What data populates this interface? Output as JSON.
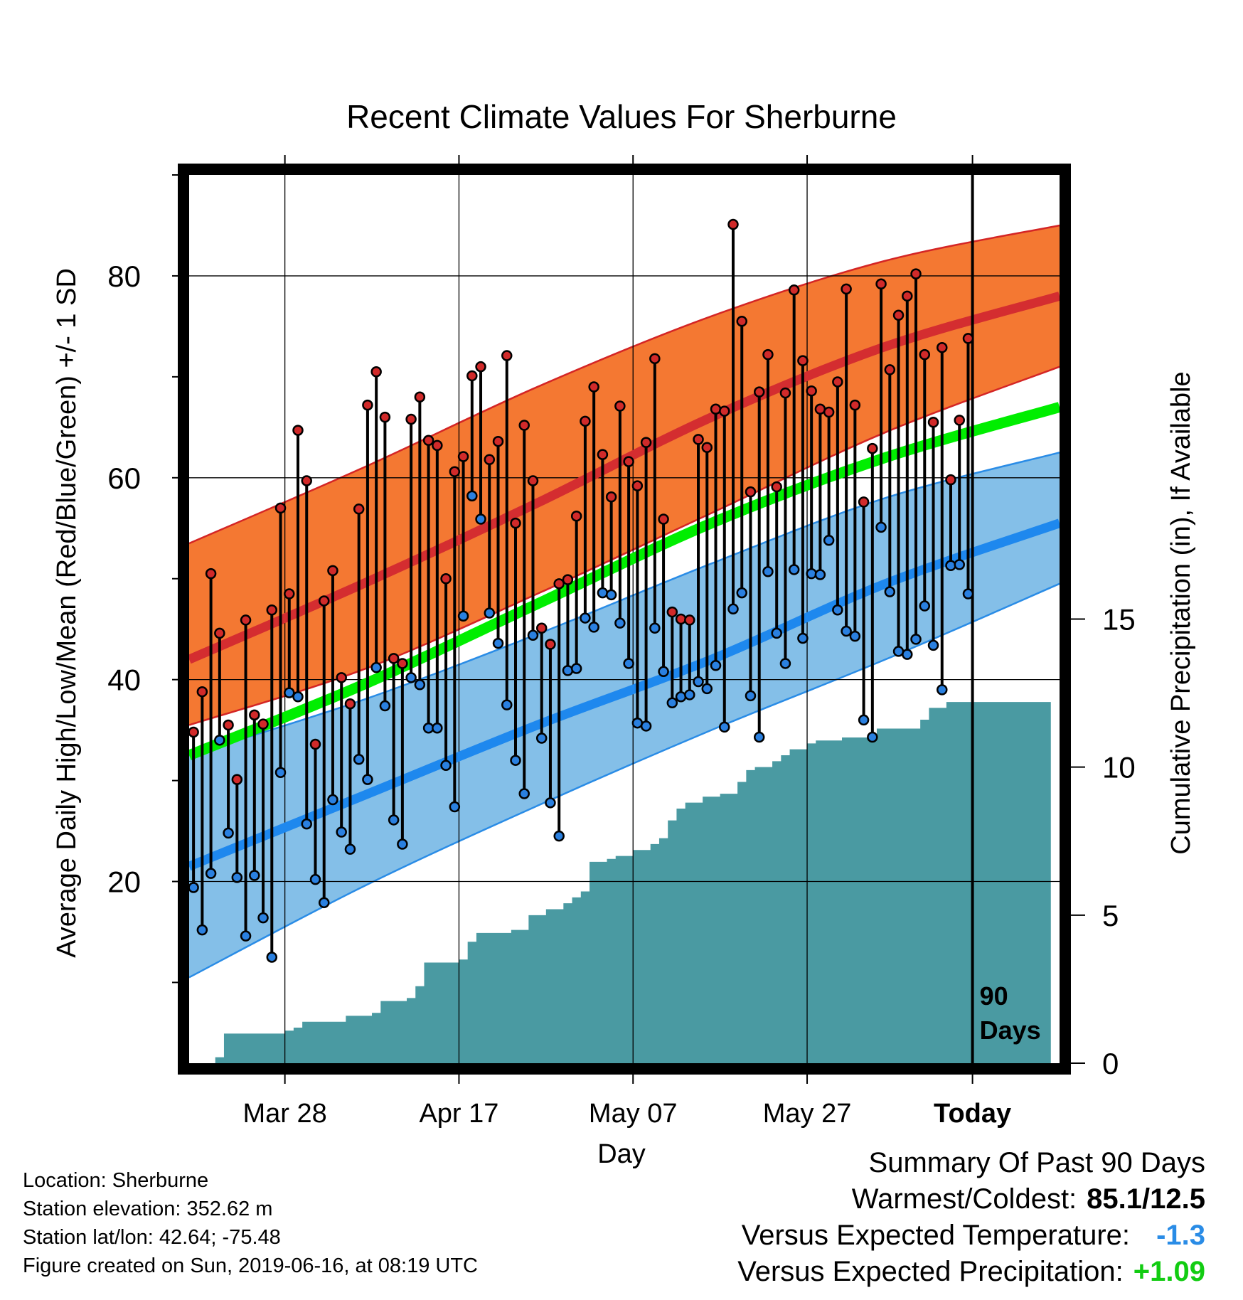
{
  "chart_data": {
    "type": "line",
    "title": "Recent Climate Values For Sherburne",
    "xlabel": "Day",
    "ylabel": "Average Daily High/Low/Mean (Red/Blue/Green) +/- 1 SD",
    "y2label": "Cumulative Precipitation (in), If Available",
    "ylim": [
      2,
      90
    ],
    "yticks": [
      20,
      40,
      60,
      80
    ],
    "y2lim": [
      0,
      30
    ],
    "y2ticks": [
      0,
      5,
      10,
      15
    ],
    "x_ticks": [
      "Mar 28",
      "Apr 17",
      "May 07",
      "May 27",
      "Today"
    ],
    "x_range": [
      "Mar 17",
      "Jun 25"
    ],
    "grid": true,
    "marker_text": "90 Days",
    "colors": {
      "high_band": "#f47832",
      "high_edge": "#d42525",
      "high_mean": "#d42d30",
      "low_band": "#84bfe8",
      "low_edge": "#2a8ce6",
      "low_mean": "#1e88ee",
      "mean": "#00ee00",
      "precip": "#4a9aa2",
      "high_marker": "#d12a2a",
      "low_marker": "#2a80e0"
    },
    "expected_high": [
      {
        "date": "Mar 17",
        "mean": 42,
        "minus_sd": 35.5,
        "plus_sd": 53.5
      },
      {
        "date": "Apr 06",
        "mean": 49.5,
        "minus_sd": 41,
        "plus_sd": 61
      },
      {
        "date": "Apr 26",
        "mean": 57.5,
        "minus_sd": 48.5,
        "plus_sd": 69
      },
      {
        "date": "May 16",
        "mean": 66,
        "minus_sd": 56.5,
        "plus_sd": 76
      },
      {
        "date": "Jun 05",
        "mean": 73,
        "minus_sd": 64.5,
        "plus_sd": 81.5
      },
      {
        "date": "Jun 25",
        "mean": 78,
        "minus_sd": 71,
        "plus_sd": 85
      }
    ],
    "expected_low": [
      {
        "date": "Mar 17",
        "mean": 21.5,
        "minus_sd": 10.5,
        "plus_sd": 32.5
      },
      {
        "date": "Apr 06",
        "mean": 28.5,
        "minus_sd": 19.5,
        "plus_sd": 38
      },
      {
        "date": "Apr 26",
        "mean": 35.5,
        "minus_sd": 27.5,
        "plus_sd": 44.5
      },
      {
        "date": "May 16",
        "mean": 42,
        "minus_sd": 35,
        "plus_sd": 51.5
      },
      {
        "date": "Jun 05",
        "mean": 49.5,
        "minus_sd": 42,
        "plus_sd": 58
      },
      {
        "date": "Jun 25",
        "mean": 55.5,
        "minus_sd": 49.5,
        "plus_sd": 62.5
      }
    ],
    "expected_mean": [
      {
        "date": "Mar 17",
        "value": 32.5
      },
      {
        "date": "Apr 06",
        "value": 39.5
      },
      {
        "date": "Apr 26",
        "value": 47.5
      },
      {
        "date": "May 16",
        "value": 55.5
      },
      {
        "date": "Jun 05",
        "value": 62
      },
      {
        "date": "Jun 25",
        "value": 67
      }
    ],
    "series": [
      {
        "name": "High",
        "values": [
          34.8,
          38.8,
          50.5,
          44.6,
          35.5,
          30.1,
          45.9,
          36.5,
          35.6,
          46.9,
          57.0,
          48.5,
          64.7,
          59.7,
          33.6,
          47.8,
          50.8,
          40.2,
          37.6,
          56.9,
          67.2,
          70.5,
          66.0,
          42.1,
          41.6,
          65.8,
          68.0,
          63.7,
          63.2,
          50.0,
          60.6,
          62.1,
          70.1,
          71.0,
          61.8,
          63.6,
          72.1,
          55.5,
          65.2,
          59.7,
          45.1,
          43.5,
          49.5,
          49.9,
          56.2,
          65.6,
          69.0,
          62.3,
          58.1,
          67.1,
          61.6,
          59.2,
          63.5,
          71.8,
          55.9,
          46.7,
          46.0,
          45.9,
          63.8,
          63.0,
          66.8,
          66.6,
          85.1,
          75.5,
          58.6,
          68.5,
          72.2,
          59.1,
          68.4,
          78.6,
          71.6,
          68.6,
          66.8,
          66.5,
          69.5,
          78.7,
          67.2,
          57.6,
          62.9,
          79.2,
          70.7,
          76.1,
          78.0,
          80.2,
          72.2,
          65.5,
          72.9,
          59.8,
          65.7,
          73.8
        ]
      },
      {
        "name": "Low",
        "values": [
          19.4,
          15.2,
          20.8,
          34.0,
          24.8,
          20.4,
          14.6,
          20.6,
          16.4,
          12.5,
          30.8,
          38.7,
          38.3,
          25.7,
          20.2,
          17.9,
          28.1,
          24.9,
          23.2,
          32.1,
          30.1,
          41.2,
          37.4,
          26.1,
          23.7,
          40.2,
          39.5,
          35.2,
          35.2,
          31.5,
          27.4,
          46.3,
          58.2,
          55.9,
          46.6,
          43.6,
          37.5,
          32.0,
          28.7,
          44.4,
          34.2,
          27.8,
          24.5,
          40.9,
          41.1,
          46.1,
          45.2,
          48.6,
          48.4,
          45.6,
          41.6,
          35.7,
          35.4,
          45.1,
          40.8,
          37.7,
          38.3,
          38.5,
          39.8,
          39.1,
          41.4,
          35.3,
          47.0,
          48.6,
          38.4,
          34.3,
          50.7,
          44.6,
          41.6,
          50.9,
          44.1,
          50.5,
          50.4,
          53.8,
          46.9,
          44.8,
          44.3,
          36.0,
          34.3,
          55.1,
          48.7,
          42.8,
          42.5,
          44.0,
          47.3,
          43.4,
          39.0,
          51.3,
          51.4,
          48.5
        ]
      },
      {
        "name": "Precipitation",
        "axis": "right",
        "values": [
          0,
          0,
          0,
          0.2,
          1.0,
          1.0,
          1.0,
          1.0,
          1.0,
          1.0,
          1.0,
          1.1,
          1.2,
          1.4,
          1.4,
          1.4,
          1.4,
          1.4,
          1.6,
          1.6,
          1.6,
          1.7,
          2.1,
          2.1,
          2.1,
          2.2,
          2.6,
          3.4,
          3.4,
          3.4,
          3.4,
          3.5,
          4.1,
          4.4,
          4.4,
          4.4,
          4.4,
          4.5,
          4.5,
          5.0,
          5.0,
          5.2,
          5.2,
          5.4,
          5.6,
          5.8,
          6.8,
          6.8,
          6.9,
          7.0,
          7.0,
          7.2,
          7.2,
          7.4,
          7.6,
          8.2,
          8.6,
          8.8,
          8.8,
          9.0,
          9.0,
          9.1,
          9.1,
          9.5,
          9.9,
          10.0,
          10.0,
          10.2,
          10.4,
          10.6,
          10.6,
          10.8,
          10.9,
          10.9,
          10.9,
          11.0,
          11.0,
          11.0,
          11.1,
          11.3,
          11.3,
          11.3,
          11.3,
          11.3,
          11.6,
          12.0,
          12.0,
          12.2,
          12.2,
          12.2,
          12.2,
          12.2,
          12.2,
          12.2,
          12.2,
          12.2,
          12.2,
          12.2,
          12.2
        ]
      }
    ]
  },
  "info": {
    "location": "Location: Sherburne",
    "elevation": "Station elevation: 352.62 m",
    "latlon": "Station lat/lon: 42.64; -75.48",
    "created": "Figure created on Sun, 2019-06-16, at 08:19 UTC"
  },
  "summary": {
    "heading": "Summary Of Past 90 Days",
    "warm_cold_label": "Warmest/Coldest:",
    "warm_cold_value": "85.1/12.5",
    "temp_label": "Versus Expected Temperature:",
    "temp_value": "-1.3",
    "precip_label": "Versus Expected Precipitation:",
    "precip_value": "+1.09"
  }
}
